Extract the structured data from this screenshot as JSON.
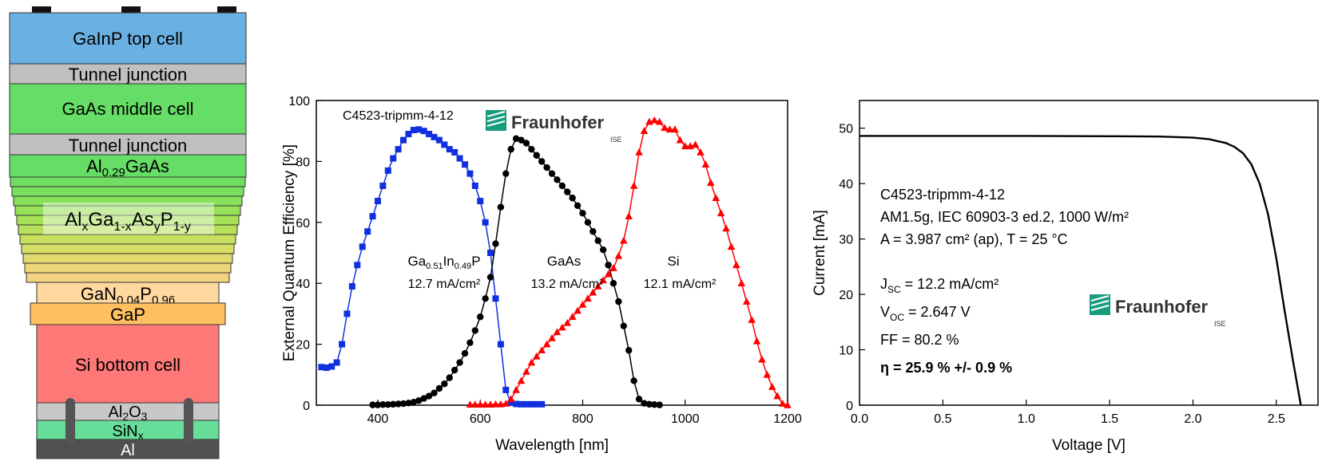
{
  "stack": {
    "layers": [
      {
        "label": "GaInP top cell",
        "color": "#6ab0e2"
      },
      {
        "label": "Tunnel junction",
        "color": "#c0c0c0"
      },
      {
        "label": "GaAs middle cell",
        "color": "#66dd66"
      },
      {
        "label": "Tunnel junction",
        "color": "#c0c0c0"
      },
      {
        "label_parts": [
          "Al",
          "0.29",
          "GaAs"
        ],
        "color": "#66dd66"
      },
      {
        "label_parts": [
          "Al",
          "x",
          "Ga",
          "1-x",
          "As",
          "y",
          "P",
          "1-y"
        ],
        "color": "#b8dd66"
      },
      {
        "label_parts": [
          "GaN",
          "0.04",
          "P",
          "0.96"
        ],
        "color": "#ffd8a0"
      },
      {
        "label": "GaP",
        "color": "#ffc060"
      },
      {
        "label": "Si bottom cell",
        "color": "#ff7878"
      },
      {
        "label_parts": [
          "Al",
          "2",
          "O",
          "3"
        ],
        "color": "#c8c8c8"
      },
      {
        "label_parts": [
          "SiN",
          "x"
        ],
        "color": "#66dd99"
      },
      {
        "label": "Al",
        "color": "#505050"
      }
    ]
  },
  "chart_data": [
    {
      "type": "scatter",
      "annotation_id": "C4523-tripmm-4-12",
      "logo": "Fraunhofer",
      "logo_sub": "ISE",
      "xlabel": "Wavelength [nm]",
      "ylabel": "External Quantum Efficiency [%]",
      "xlim": [
        280,
        1200
      ],
      "ylim": [
        0,
        100
      ],
      "xticks": [
        400,
        600,
        800,
        1000,
        1200
      ],
      "yticks": [
        0,
        20,
        40,
        60,
        80,
        100
      ],
      "series": [
        {
          "name_parts": [
            "Ga",
            "0.51",
            "In",
            "0.49",
            "P"
          ],
          "jsc": "12.7 mA/cm²",
          "color": "#1030e0",
          "marker": "square",
          "x": [
            290,
            300,
            310,
            320,
            330,
            340,
            350,
            360,
            370,
            380,
            390,
            400,
            410,
            420,
            430,
            440,
            450,
            460,
            470,
            480,
            490,
            500,
            510,
            520,
            530,
            540,
            550,
            560,
            570,
            580,
            590,
            600,
            610,
            620,
            630,
            640,
            650,
            660,
            670,
            680,
            690,
            700,
            710,
            720
          ],
          "y": [
            12.5,
            12.3,
            12.7,
            14,
            20,
            30,
            39,
            46,
            52,
            57,
            62,
            67,
            72,
            77,
            81,
            84,
            87,
            89,
            90.3,
            90.5,
            90,
            89,
            88,
            87,
            85.5,
            84,
            83,
            81,
            79,
            76,
            72,
            67,
            60,
            50,
            35,
            20,
            5,
            0.8,
            0.4,
            0.3,
            0.3,
            0.3,
            0.3,
            0.3
          ]
        },
        {
          "name": "GaAs",
          "jsc": "13.2 mA/cm²",
          "color": "#000000",
          "marker": "circle",
          "x": [
            390,
            400,
            410,
            420,
            430,
            440,
            450,
            460,
            470,
            480,
            490,
            500,
            510,
            520,
            530,
            540,
            550,
            560,
            570,
            580,
            590,
            600,
            610,
            620,
            630,
            640,
            650,
            660,
            670,
            680,
            690,
            700,
            710,
            720,
            730,
            740,
            750,
            760,
            770,
            780,
            790,
            800,
            810,
            820,
            830,
            840,
            850,
            860,
            870,
            880,
            890,
            900,
            910,
            920,
            930,
            940,
            950
          ],
          "y": [
            0.1,
            0.1,
            0.2,
            0.2,
            0.3,
            0.4,
            0.5,
            0.7,
            1,
            1.5,
            2.2,
            3,
            4,
            5.5,
            7,
            9,
            11.5,
            14,
            17,
            20.5,
            24.5,
            29,
            35,
            42,
            53,
            65,
            76,
            84,
            87.5,
            87,
            86,
            84,
            82,
            80,
            78,
            76,
            74,
            72,
            70,
            68,
            65.5,
            63,
            60,
            57,
            54,
            51,
            46,
            40,
            34,
            26,
            18,
            8,
            2,
            0.6,
            0.3,
            0.2,
            0.1
          ]
        },
        {
          "name": "Si",
          "jsc": "12.1 mA/cm²",
          "color": "#ff0000",
          "marker": "triangle",
          "x": [
            580,
            590,
            600,
            610,
            620,
            630,
            640,
            650,
            660,
            670,
            680,
            690,
            700,
            710,
            720,
            730,
            740,
            750,
            760,
            770,
            780,
            790,
            800,
            810,
            820,
            830,
            840,
            850,
            860,
            870,
            880,
            890,
            900,
            910,
            920,
            930,
            940,
            950,
            960,
            970,
            980,
            990,
            1000,
            1010,
            1020,
            1030,
            1040,
            1050,
            1060,
            1070,
            1080,
            1090,
            1100,
            1110,
            1120,
            1130,
            1140,
            1150,
            1160,
            1170,
            1180,
            1190,
            1200
          ],
          "y": [
            0.2,
            0.2,
            0.2,
            0.2,
            0.2,
            0.3,
            0.3,
            0.5,
            2,
            5,
            8,
            11,
            14,
            16,
            18,
            20,
            22,
            24,
            25.5,
            27,
            29,
            31,
            33,
            35,
            37,
            39,
            41,
            43,
            45,
            49,
            54,
            62,
            72,
            83,
            90,
            93,
            93.5,
            93,
            91,
            90.5,
            90.5,
            87,
            85,
            85,
            85.5,
            83,
            79,
            73,
            68,
            63,
            58,
            52,
            46,
            40,
            34,
            28,
            21,
            15,
            10,
            6,
            3,
            0.5,
            0
          ]
        }
      ]
    },
    {
      "type": "line",
      "xlabel": "Voltage [V]",
      "ylabel": "Current [mA]",
      "xlim": [
        0,
        2.75
      ],
      "ylim": [
        0,
        55
      ],
      "xticks": [
        0.0,
        0.5,
        1.0,
        1.5,
        2.0,
        2.5
      ],
      "xtick_labels": [
        "0.0",
        "0.5",
        "1.0",
        "1.5",
        "2.0",
        "2.5"
      ],
      "yticks": [
        0,
        10,
        20,
        30,
        40,
        50
      ],
      "series": [
        {
          "x": [
            0,
            0.5,
            1.0,
            1.5,
            1.8,
            2.0,
            2.1,
            2.2,
            2.25,
            2.3,
            2.35,
            2.4,
            2.45,
            2.5,
            2.55,
            2.6,
            2.647
          ],
          "y": [
            48.6,
            48.6,
            48.6,
            48.55,
            48.5,
            48.3,
            48.0,
            47.3,
            46.6,
            45.5,
            43.5,
            40.0,
            34.5,
            26.5,
            17.0,
            8.0,
            0
          ]
        }
      ],
      "annotations": {
        "id": "C4523-tripmm-4-12",
        "cond": "AM1.5g, IEC 60903-3 ed.2, 1000 W/m²",
        "area": "A = 3.987 cm² (ap), T = 25 °C",
        "jsc_value": " = 12.2 mA/cm²",
        "voc_value": " = 2.647 V",
        "ff": "FF = 80.2 %",
        "eta": "η = 25.9 % +/- 0.9 %"
      },
      "logo": "Fraunhofer",
      "logo_sub": "ISE"
    }
  ]
}
